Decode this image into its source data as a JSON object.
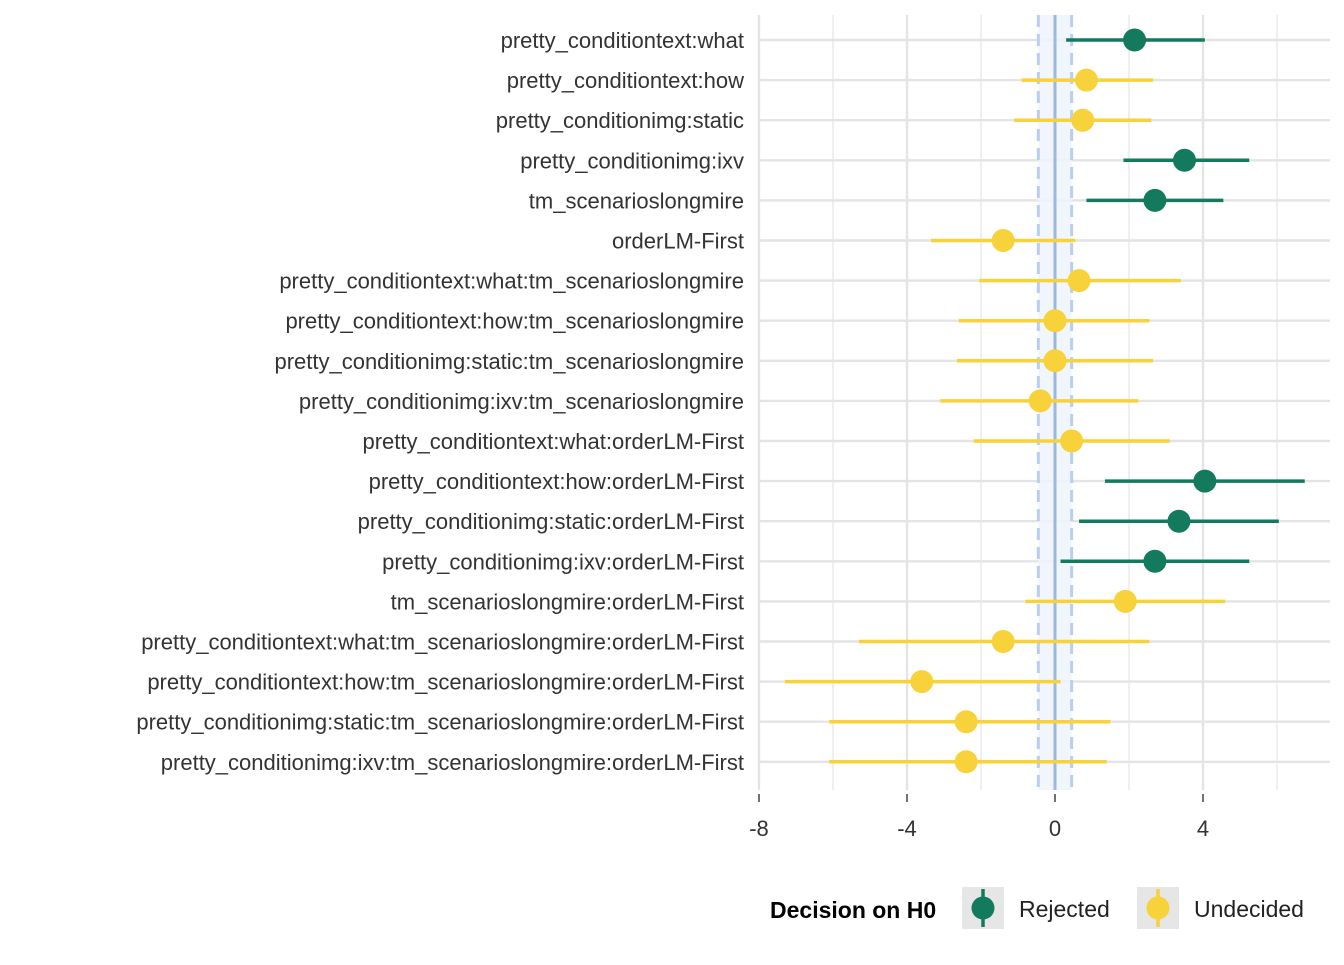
{
  "chart_data": {
    "type": "forest",
    "terms": [
      "pretty_conditiontext:what",
      "pretty_conditiontext:how",
      "pretty_conditionimg:static",
      "pretty_conditionimg:ixv",
      "tm_scenarioslongmire",
      "orderLM-First",
      "pretty_conditiontext:what:tm_scenarioslongmire",
      "pretty_conditiontext:how:tm_scenarioslongmire",
      "pretty_conditionimg:static:tm_scenarioslongmire",
      "pretty_conditionimg:ixv:tm_scenarioslongmire",
      "pretty_conditiontext:what:orderLM-First",
      "pretty_conditiontext:how:orderLM-First",
      "pretty_conditionimg:static:orderLM-First",
      "pretty_conditionimg:ixv:orderLM-First",
      "tm_scenarioslongmire:orderLM-First",
      "pretty_conditiontext:what:tm_scenarioslongmire:orderLM-First",
      "pretty_conditiontext:how:tm_scenarioslongmire:orderLM-First",
      "pretty_conditionimg:static:tm_scenarioslongmire:orderLM-First",
      "pretty_conditionimg:ixv:tm_scenarioslongmire:orderLM-First"
    ],
    "estimates": [
      2.15,
      0.85,
      0.75,
      3.5,
      2.7,
      -1.4,
      0.65,
      0.0,
      0.0,
      -0.4,
      0.45,
      4.05,
      3.35,
      2.7,
      1.9,
      -1.4,
      -3.6,
      -2.4,
      -2.4
    ],
    "lower": [
      0.3,
      -0.9,
      -1.1,
      1.85,
      0.85,
      -3.35,
      -2.05,
      -2.6,
      -2.65,
      -3.1,
      -2.2,
      1.35,
      0.65,
      0.15,
      -0.8,
      -5.3,
      -7.3,
      -6.1,
      -6.1
    ],
    "upper": [
      4.05,
      2.65,
      2.6,
      5.25,
      4.55,
      0.55,
      3.4,
      2.55,
      2.65,
      2.25,
      3.1,
      6.75,
      6.05,
      5.25,
      4.6,
      2.55,
      0.15,
      1.5,
      1.4
    ],
    "decision": [
      "Rejected",
      "Undecided",
      "Undecided",
      "Rejected",
      "Rejected",
      "Undecided",
      "Undecided",
      "Undecided",
      "Undecided",
      "Undecided",
      "Undecided",
      "Rejected",
      "Rejected",
      "Rejected",
      "Undecided",
      "Undecided",
      "Undecided",
      "Undecided",
      "Undecided"
    ],
    "x_ticks": [
      "-8",
      "-4",
      "0",
      "4"
    ],
    "x_tick_values": [
      -8,
      -4,
      0,
      4
    ],
    "xlim": [
      -8.0,
      7.4
    ],
    "rope": [
      -0.45,
      0.45
    ],
    "grid": true,
    "legend": {
      "title": "Decision on H0",
      "position": "bottom",
      "entries": [
        {
          "label": "Rejected",
          "color": "#137a5e"
        },
        {
          "label": "Undecided",
          "color": "#f7d23a"
        }
      ]
    },
    "colors": {
      "rejected": "#137a5e",
      "undecided": "#f7d23a",
      "zero_line": "#9bb8e0",
      "rope_band": "#eef3fb",
      "rope_dash": "#b9cff0",
      "grid": "#e4e4e4"
    }
  }
}
